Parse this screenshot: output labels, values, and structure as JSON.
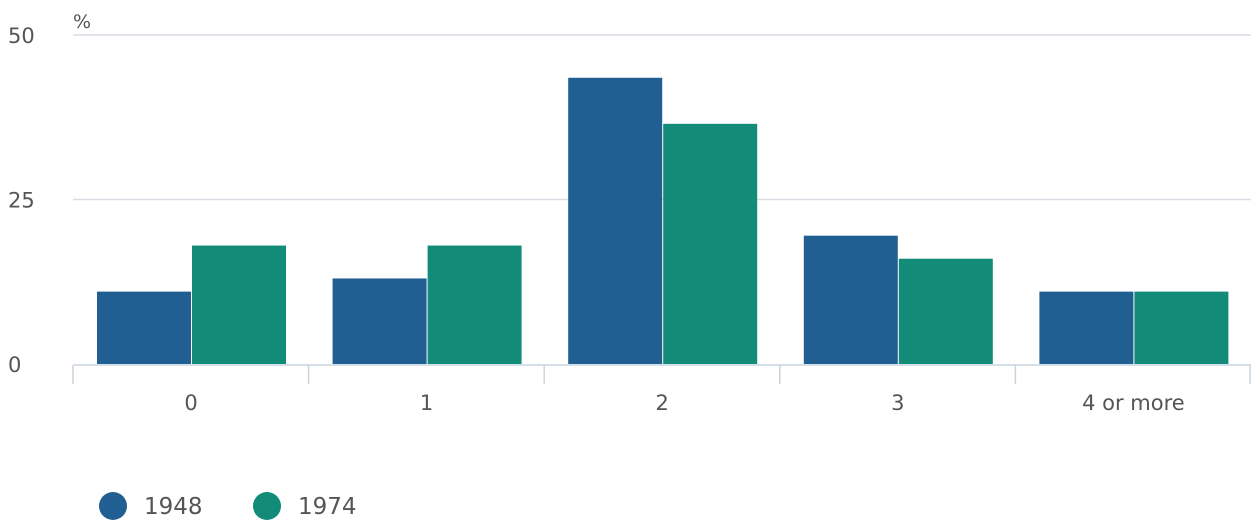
{
  "chart_data": {
    "type": "bar",
    "unit_label": "%",
    "categories": [
      "0",
      "1",
      "2",
      "3",
      "4 or more"
    ],
    "series": [
      {
        "name": "1948",
        "color": "#215f93",
        "values": [
          11,
          13,
          43.5,
          19.5,
          11
        ]
      },
      {
        "name": "1974",
        "color": "#128b78",
        "values": [
          18,
          18,
          36.5,
          16,
          11
        ]
      }
    ],
    "ylim": [
      0,
      50
    ],
    "yticks": [
      0,
      25,
      50
    ],
    "grid": true,
    "legend_position": "bottom-left"
  }
}
